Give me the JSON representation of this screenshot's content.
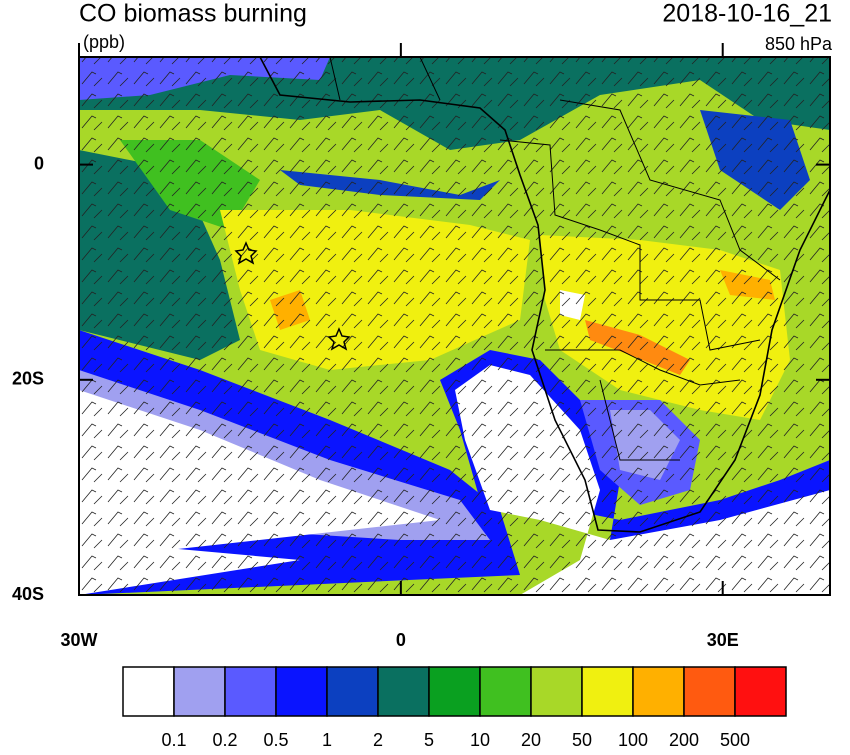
{
  "header": {
    "title": "CO biomass burning",
    "units": "(ppb)",
    "time": "2018-10-16_21",
    "level": "850 hPa"
  },
  "map": {
    "lonlim": [
      -30,
      40
    ],
    "latlim": [
      -40,
      10
    ],
    "lonticks": [
      {
        "value": -30,
        "label": "30W"
      },
      0,
      {
        "value": 30,
        "label": "30E"
      }
    ],
    "latticks": [
      0,
      {
        "value": -20,
        "label": "20S"
      },
      {
        "value": -40,
        "label": "40S"
      }
    ]
  },
  "colorbar": {
    "levels": [
      0.1,
      0.2,
      0.5,
      1,
      2,
      5,
      10,
      20,
      50,
      100,
      200,
      500
    ],
    "colors": [
      "#ffffff",
      "#a0a0f0",
      "#5a5aff",
      "#0a14ff",
      "#0c40c0",
      "#0a7060",
      "#0aa020",
      "#40c020",
      "#a8d828",
      "#f0f010",
      "#ffb000",
      "#ff5a10",
      "#ff1010"
    ]
  }
}
